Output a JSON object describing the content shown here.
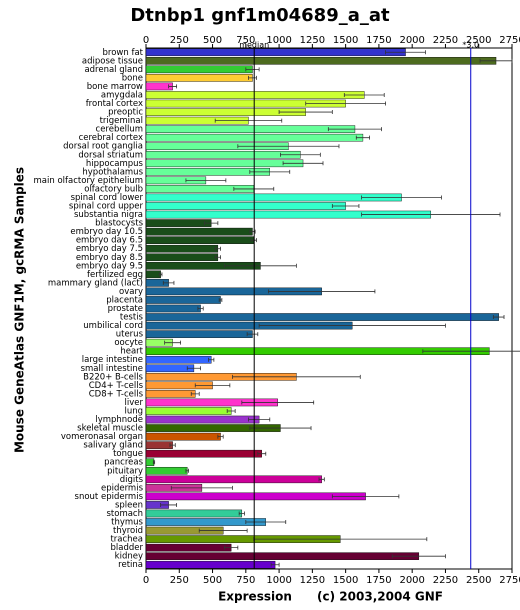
{
  "chart_data": {
    "type": "hbar",
    "title": "Dtnbp1 gnf1m04689_a_at",
    "x_label": "Expression",
    "y_label": "Mouse GeneAtlas GNF1M, gcRMA Samples",
    "footer": "(c) 2003,2004 GNF",
    "xlim": [
      0,
      2750
    ],
    "xticks": [
      0,
      250,
      500,
      750,
      1000,
      1250,
      1500,
      1750,
      2000,
      2250,
      2500,
      2750
    ],
    "reference_lines": [
      {
        "value": 813,
        "label": "median",
        "color": "#000000"
      },
      {
        "value": 2440,
        "label": "*3.0",
        "color": "#0000cc"
      }
    ],
    "categories": [
      "brown fat",
      "adipose tissue",
      "adrenal gland",
      "bone",
      "bone marrow",
      "amygdala",
      "frontal cortex",
      "preoptic",
      "trigeminal",
      "cerebellum",
      "cerebral cortex",
      "dorsal root ganglia",
      "dorsal striatum",
      "hippocampus",
      "hypothalamus",
      "main olfactory epithelium",
      "olfactory bulb",
      "spinal cord lower",
      "spinal cord upper",
      "substantia nigra",
      "blastocysts",
      "embryo day 10.5",
      "embryo day 6.5",
      "embryo day 7.5",
      "embryo day 8.5",
      "embryo day 9.5",
      "fertilized egg",
      "mammary gland (lact)",
      "ovary",
      "placenta",
      "prostate",
      "testis",
      "umbilical cord",
      "uterus",
      "oocyte",
      "heart",
      "large intestine",
      "small intestine",
      "B220+ B-cells",
      "CD4+ T-cells",
      "CD8+ T-cells",
      "liver",
      "lung",
      "lymphnode",
      "skeletal muscle",
      "vomeronasal organ",
      "salivary gland",
      "tongue",
      "pancreas",
      "pituitary",
      "digits",
      "epidermis",
      "snout epidermis",
      "spleen",
      "stomach",
      "thymus",
      "thyroid",
      "trachea",
      "bladder",
      "kidney",
      "retina"
    ],
    "values": [
      1950,
      2630,
      800,
      800,
      200,
      1640,
      1500,
      1200,
      770,
      1570,
      1630,
      1070,
      1160,
      1180,
      930,
      450,
      810,
      1920,
      1500,
      2140,
      490,
      800,
      810,
      540,
      540,
      860,
      110,
      170,
      1320,
      560,
      410,
      2650,
      1550,
      800,
      200,
      2580,
      490,
      360,
      1130,
      500,
      370,
      990,
      640,
      850,
      1010,
      560,
      200,
      870,
      60,
      310,
      1320,
      420,
      1650,
      170,
      720,
      900,
      580,
      1460,
      640,
      2050,
      970
    ],
    "errors": [
      150,
      120,
      50,
      30,
      30,
      150,
      300,
      200,
      250,
      200,
      50,
      380,
      150,
      150,
      150,
      150,
      150,
      300,
      100,
      520,
      50,
      20,
      20,
      20,
      20,
      270,
      10,
      40,
      400,
      10,
      20,
      40,
      700,
      40,
      60,
      500,
      20,
      50,
      480,
      130,
      30,
      270,
      30,
      80,
      230,
      20,
      20,
      30,
      5,
      10,
      20,
      230,
      250,
      60,
      20,
      150,
      180,
      650,
      50,
      200,
      30
    ],
    "colors": [
      "#3333cc",
      "#4d6b1f",
      "#33cc33",
      "#ffcc33",
      "#ff33cc",
      "#ccff33",
      "#ccff33",
      "#ccff33",
      "#ccff33",
      "#66ff99",
      "#66ff99",
      "#66ff99",
      "#66ff99",
      "#66ff99",
      "#66ff99",
      "#66ff99",
      "#66ff99",
      "#33ffcc",
      "#33ffcc",
      "#33ffcc",
      "#1a4d1a",
      "#1a4d1a",
      "#1a4d1a",
      "#1a4d1a",
      "#1a4d1a",
      "#1a4d1a",
      "#1a4d1a",
      "#1a6699",
      "#1a6699",
      "#1a6699",
      "#1a6699",
      "#1a6699",
      "#1a6699",
      "#1a6699",
      "#99ff66",
      "#33cc00",
      "#3366ff",
      "#3366ff",
      "#ff9933",
      "#ff9933",
      "#ff9933",
      "#ff33cc",
      "#99ff33",
      "#9933cc",
      "#336600",
      "#cc5500",
      "#993333",
      "#990033",
      "#33cc33",
      "#33cc33",
      "#cc0099",
      "#cc3399",
      "#cc00cc",
      "#6633cc",
      "#33cc99",
      "#3399cc",
      "#999933",
      "#669900",
      "#660033",
      "#660033",
      "#6600cc"
    ]
  }
}
